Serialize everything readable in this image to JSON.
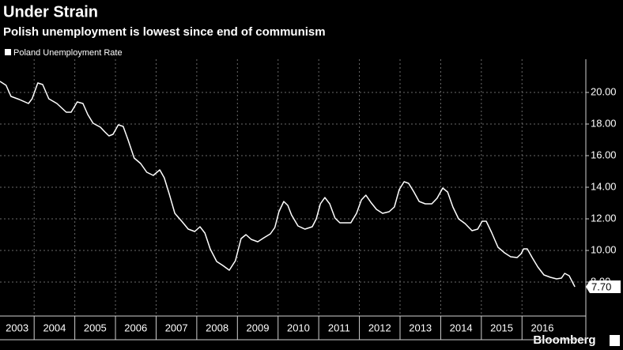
{
  "chart_data": {
    "type": "line",
    "title": "Under Strain",
    "subtitle": "Polish unemployment is lowest since end of communism",
    "source": "Bloomberg",
    "legend": "top-left",
    "grid": true,
    "xlim": [
      2003.16,
      2017.57
    ],
    "xticks": [
      2003,
      2004,
      2005,
      2006,
      2007,
      2008,
      2009,
      2010,
      2011,
      2012,
      2013,
      2014,
      2015,
      2016
    ],
    "ylim": [
      5.85,
      22.1
    ],
    "yticks": [
      {
        "value": 8,
        "label": "8.00"
      },
      {
        "value": 10,
        "label": "10.00"
      },
      {
        "value": 12,
        "label": "12.00"
      },
      {
        "value": 14,
        "label": "14.00"
      },
      {
        "value": 16,
        "label": "16.00"
      },
      {
        "value": 18,
        "label": "18.00"
      },
      {
        "value": 20,
        "label": "20.00"
      }
    ],
    "last_value_label": "7.70",
    "x": [
      2003.16,
      2003.31,
      2003.43,
      2003.64,
      2003.86,
      2003.95,
      2004.09,
      2004.21,
      2004.36,
      2004.56,
      2004.79,
      2004.91,
      2005.06,
      2005.2,
      2005.32,
      2005.45,
      2005.63,
      2005.74,
      2005.84,
      2005.94,
      2006.07,
      2006.19,
      2006.31,
      2006.46,
      2006.62,
      2006.77,
      2006.93,
      2007.09,
      2007.2,
      2007.32,
      2007.46,
      2007.63,
      2007.79,
      2007.95,
      2008.08,
      2008.2,
      2008.33,
      2008.49,
      2008.64,
      2008.8,
      2008.95,
      2009.09,
      2009.21,
      2009.34,
      2009.5,
      2009.65,
      2009.81,
      2009.92,
      2010.02,
      2010.14,
      2010.24,
      2010.33,
      2010.49,
      2010.66,
      2010.84,
      2010.94,
      2011.04,
      2011.15,
      2011.27,
      2011.4,
      2011.52,
      2011.79,
      2011.93,
      2012.05,
      2012.16,
      2012.28,
      2012.42,
      2012.57,
      2012.73,
      2012.86,
      2012.98,
      2013.1,
      2013.21,
      2013.33,
      2013.47,
      2013.62,
      2013.78,
      2013.91,
      2014.05,
      2014.17,
      2014.3,
      2014.44,
      2014.6,
      2014.77,
      2014.91,
      2015.02,
      2015.12,
      2015.25,
      2015.41,
      2015.57,
      2015.72,
      2015.88,
      2015.98,
      2016.04,
      2016.13,
      2016.25,
      2016.39,
      2016.54,
      2016.7,
      2016.85,
      2016.97,
      2017.05,
      2017.16,
      2017.3
    ],
    "series": [
      {
        "name": "Poland Unemployment Rate",
        "color": "#ffffff",
        "values": [
          20.7,
          20.45,
          19.75,
          19.55,
          19.3,
          19.6,
          20.6,
          20.5,
          19.6,
          19.3,
          18.75,
          18.75,
          19.4,
          19.3,
          18.6,
          18.05,
          17.8,
          17.5,
          17.25,
          17.35,
          17.95,
          17.85,
          17.0,
          15.85,
          15.5,
          14.95,
          14.75,
          15.1,
          14.6,
          13.6,
          12.35,
          11.85,
          11.35,
          11.2,
          11.5,
          11.1,
          10.1,
          9.3,
          9.05,
          8.75,
          9.35,
          10.75,
          11.0,
          10.7,
          10.55,
          10.8,
          11.05,
          11.45,
          12.45,
          13.1,
          12.85,
          12.25,
          11.55,
          11.35,
          11.5,
          12.0,
          12.95,
          13.35,
          12.95,
          12.05,
          11.75,
          11.75,
          12.35,
          13.2,
          13.5,
          13.05,
          12.6,
          12.35,
          12.45,
          12.75,
          13.85,
          14.35,
          14.25,
          13.75,
          13.1,
          12.95,
          12.95,
          13.3,
          13.95,
          13.7,
          12.75,
          12.0,
          11.7,
          11.25,
          11.35,
          11.85,
          11.85,
          11.15,
          10.2,
          9.85,
          9.6,
          9.55,
          9.8,
          10.1,
          10.1,
          9.55,
          8.95,
          8.45,
          8.3,
          8.2,
          8.25,
          8.55,
          8.4,
          7.7
        ]
      }
    ]
  }
}
